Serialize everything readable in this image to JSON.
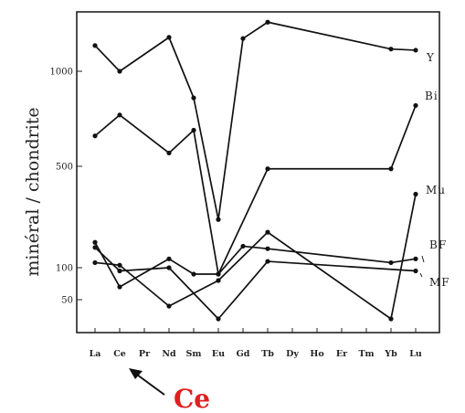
{
  "chart_data": {
    "type": "line",
    "title": "",
    "xlabel": "",
    "ylabel": "minéral / chondrite",
    "categories": [
      "La",
      "Ce",
      "Pr",
      "Nd",
      "Sm",
      "Eu",
      "Gd",
      "Tb",
      "Dy",
      "Ho",
      "Er",
      "Tm",
      "Yb",
      "Lu"
    ],
    "y_ticks": [
      "50",
      "100",
      "500",
      "1000"
    ],
    "grid": false,
    "series": [
      {
        "name": "Y",
        "points": [
          [
            "La",
            1220
          ],
          [
            "Ce",
            1000
          ],
          [
            "Nd",
            1290
          ],
          [
            "Sm",
            860
          ],
          [
            "Eu",
            290
          ],
          [
            "Gd",
            1280
          ],
          [
            "Tb",
            1420
          ],
          [
            "Yb",
            1190
          ],
          [
            "Lu",
            1180
          ]
        ]
      },
      {
        "name": "Bi",
        "points": [
          [
            "La",
            660
          ],
          [
            "Ce",
            770
          ],
          [
            "Nd",
            570
          ],
          [
            "Sm",
            690
          ],
          [
            "Eu",
            90
          ],
          [
            "Tb",
            490
          ],
          [
            "Yb",
            490
          ],
          [
            "Lu",
            820
          ]
        ]
      },
      {
        "name": "Mu",
        "points": [
          [
            "La",
            200
          ],
          [
            "Ce",
            70
          ],
          [
            "Nd",
            135
          ],
          [
            "Sm",
            90
          ],
          [
            "Eu",
            90
          ],
          [
            "Gd",
            185
          ],
          [
            "Tb",
            175
          ],
          [
            "Yb",
            120
          ],
          [
            "Lu",
            135
          ]
        ]
      },
      {
        "name": "BF",
        "points": [
          [
            "La",
            120
          ],
          [
            "Ce",
            110
          ],
          [
            "Nd",
            40
          ],
          [
            "Eu",
            80
          ],
          [
            "Tb",
            240
          ],
          [
            "Yb",
            20
          ],
          [
            "Lu",
            390
          ]
        ]
      },
      {
        "name": "MF",
        "points": [
          [
            "La",
            180
          ],
          [
            "Ce",
            95
          ],
          [
            "Nd",
            100
          ],
          [
            "Eu",
            20
          ],
          [
            "Tb",
            125
          ],
          [
            "Lu",
            95
          ]
        ]
      }
    ],
    "annotation": {
      "text": "Ce",
      "color": "#e02020",
      "arrow_target": "Ce"
    }
  }
}
